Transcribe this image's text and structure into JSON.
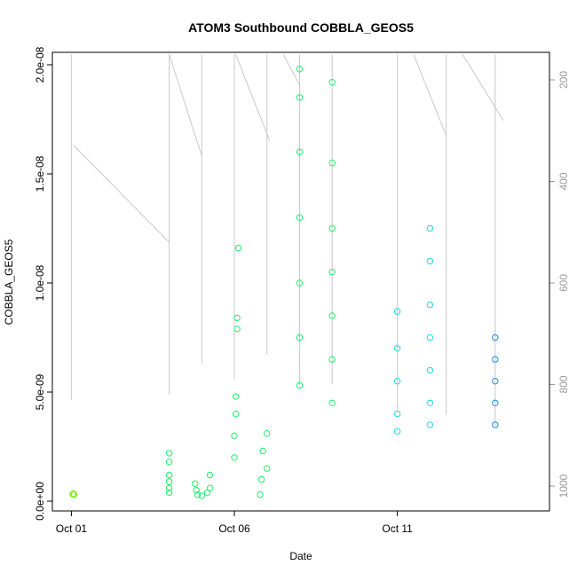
{
  "chart_data": {
    "type": "scatter",
    "title": "ATOM3 Southbound COBBLA_GEOS5",
    "xlabel": "Date",
    "ylabel": "COBBLA_GEOS5",
    "ylim": [
      0,
      2e-08
    ],
    "yticks": [
      0,
      5e-09,
      1e-08,
      1.5e-08,
      2e-08
    ],
    "ytick_labels": [
      "0.0e+00",
      "5.0e-09",
      "1.0e-08",
      "1.5e-08",
      "2.0e-08"
    ],
    "xlim": [
      "2016-09-30T10:00",
      "2016-10-15T16:00"
    ],
    "xticks": [
      "2016-10-01",
      "2016-10-06",
      "2016-10-11"
    ],
    "xtick_labels": [
      "Oct 01",
      "Oct 06",
      "Oct 11"
    ],
    "y2_ticks": [
      200,
      400,
      600,
      800,
      1000
    ],
    "y2_tick_labels": [
      "200",
      "400",
      "600",
      "800",
      "1000"
    ],
    "y2_range_top_bottom": [
      150,
      1020
    ],
    "grid": false,
    "colors": {
      "points_early": "#7cf01a",
      "points_mid": "#1ef06a",
      "points_late": "#1ad9ee",
      "points_end": "#1a8cf0",
      "altitude_line": "#c8c8c8"
    },
    "series": [
      {
        "values": [
          {
            "x": "2016-10-01T01:00",
            "y": 3.2e-10
          },
          {
            "x": "2016-10-01T01:30",
            "y": 3.4e-10
          },
          {
            "x": "2016-10-01T02:00",
            "y": 3e-10
          },
          {
            "x": "2016-10-04T00:00",
            "y": 2.2e-09
          },
          {
            "x": "2016-10-04T00:00",
            "y": 1.8e-09
          },
          {
            "x": "2016-10-04T00:00",
            "y": 1.2e-09
          },
          {
            "x": "2016-10-04T00:00",
            "y": 9e-10
          },
          {
            "x": "2016-10-04T00:00",
            "y": 6e-10
          },
          {
            "x": "2016-10-04T00:00",
            "y": 4e-10
          },
          {
            "x": "2016-10-04T19:00",
            "y": 8e-10
          },
          {
            "x": "2016-10-04T20:00",
            "y": 5e-10
          },
          {
            "x": "2016-10-04T21:00",
            "y": 3e-10
          },
          {
            "x": "2016-10-05T00:00",
            "y": 2.5e-10
          },
          {
            "x": "2016-10-05T04:00",
            "y": 4e-10
          },
          {
            "x": "2016-10-05T06:00",
            "y": 6e-10
          },
          {
            "x": "2016-10-05T06:00",
            "y": 1.2e-09
          },
          {
            "x": "2016-10-06T00:00",
            "y": 2e-09
          },
          {
            "x": "2016-10-06T00:00",
            "y": 3e-09
          },
          {
            "x": "2016-10-06T01:00",
            "y": 4e-09
          },
          {
            "x": "2016-10-06T01:00",
            "y": 4.8e-09
          },
          {
            "x": "2016-10-06T02:00",
            "y": 7.9e-09
          },
          {
            "x": "2016-10-06T02:00",
            "y": 8.4e-09
          },
          {
            "x": "2016-10-06T03:00",
            "y": 1.16e-08
          },
          {
            "x": "2016-10-06T19:00",
            "y": 3e-10
          },
          {
            "x": "2016-10-06T20:00",
            "y": 1e-09
          },
          {
            "x": "2016-10-06T21:00",
            "y": 2.3e-09
          },
          {
            "x": "2016-10-07T00:00",
            "y": 3.1e-09
          },
          {
            "x": "2016-10-07T00:00",
            "y": 1.5e-09
          },
          {
            "x": "2016-10-08T00:00",
            "y": 5.3e-09
          },
          {
            "x": "2016-10-08T00:00",
            "y": 7.5e-09
          },
          {
            "x": "2016-10-08T00:00",
            "y": 1e-08
          },
          {
            "x": "2016-10-08T00:00",
            "y": 1.3e-08
          },
          {
            "x": "2016-10-08T00:00",
            "y": 1.6e-08
          },
          {
            "x": "2016-10-08T00:00",
            "y": 1.85e-08
          },
          {
            "x": "2016-10-08T00:00",
            "y": 1.98e-08
          },
          {
            "x": "2016-10-09T00:00",
            "y": 4.5e-09
          },
          {
            "x": "2016-10-09T00:00",
            "y": 6.5e-09
          },
          {
            "x": "2016-10-09T00:00",
            "y": 8.5e-09
          },
          {
            "x": "2016-10-09T00:00",
            "y": 1.05e-08
          },
          {
            "x": "2016-10-09T00:00",
            "y": 1.25e-08
          },
          {
            "x": "2016-10-09T00:00",
            "y": 1.55e-08
          },
          {
            "x": "2016-10-09T00:00",
            "y": 1.92e-08
          },
          {
            "x": "2016-10-11T00:00",
            "y": 3.2e-09
          },
          {
            "x": "2016-10-11T00:00",
            "y": 4e-09
          },
          {
            "x": "2016-10-11T00:00",
            "y": 5.5e-09
          },
          {
            "x": "2016-10-11T00:00",
            "y": 7e-09
          },
          {
            "x": "2016-10-11T00:00",
            "y": 8.7e-09
          },
          {
            "x": "2016-10-12T00:00",
            "y": 3.5e-09
          },
          {
            "x": "2016-10-12T00:00",
            "y": 4.5e-09
          },
          {
            "x": "2016-10-12T00:00",
            "y": 6e-09
          },
          {
            "x": "2016-10-12T00:00",
            "y": 7.5e-09
          },
          {
            "x": "2016-10-12T00:00",
            "y": 9e-09
          },
          {
            "x": "2016-10-12T00:00",
            "y": 1.1e-08
          },
          {
            "x": "2016-10-12T00:00",
            "y": 1.25e-08
          },
          {
            "x": "2016-10-14T00:00",
            "y": 3.5e-09
          },
          {
            "x": "2016-10-14T00:00",
            "y": 4.5e-09
          },
          {
            "x": "2016-10-14T00:00",
            "y": 5.5e-09
          },
          {
            "x": "2016-10-14T00:00",
            "y": 6.5e-09
          },
          {
            "x": "2016-10-14T00:00",
            "y": 7.5e-09
          }
        ]
      }
    ]
  }
}
